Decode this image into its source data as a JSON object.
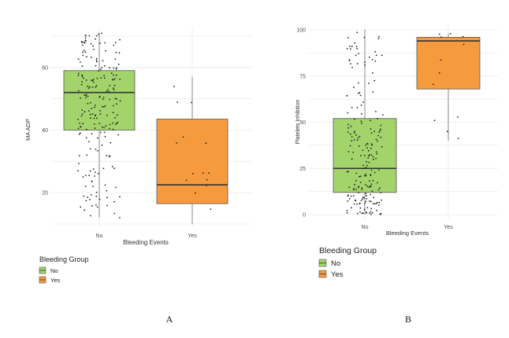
{
  "chart_data": [
    {
      "type": "box",
      "panel_label": "A",
      "xlabel": "Bleeding Events",
      "ylabel": "MA ADP",
      "categories": [
        "No",
        "Yes"
      ],
      "ylim": [
        10,
        72
      ],
      "yticks": [
        20,
        40,
        60
      ],
      "boxes": [
        {
          "category": "No",
          "whisker_low": 12,
          "q1": 40,
          "median": 52,
          "q3": 59,
          "whisker_high": 71,
          "color": "#a3d36b"
        },
        {
          "category": "Yes",
          "whisker_low": 10,
          "q1": 16.5,
          "median": 22.5,
          "q3": 43.5,
          "whisker_high": 57,
          "color": "#f59b3d"
        }
      ],
      "legend": {
        "title": "Bleeding Group",
        "entries": [
          "No",
          "Yes"
        ]
      }
    },
    {
      "type": "box",
      "panel_label": "B",
      "xlabel": "Bleeding Events",
      "ylabel": "Platelets Inhibition",
      "categories": [
        "No",
        "Yes"
      ],
      "ylim": [
        0,
        100
      ],
      "yticks": [
        0,
        25,
        50,
        75,
        100
      ],
      "boxes": [
        {
          "category": "No",
          "whisker_low": 0,
          "q1": 12,
          "median": 25,
          "q3": 52,
          "whisker_high": 100,
          "color": "#a3d36b"
        },
        {
          "category": "Yes",
          "whisker_low": 40,
          "q1": 68,
          "median": 94,
          "q3": 96,
          "whisker_high": 98,
          "color": "#f59b3d"
        }
      ],
      "legend": {
        "title": "Bleeding Group",
        "entries": [
          "No",
          "Yes"
        ]
      }
    }
  ]
}
